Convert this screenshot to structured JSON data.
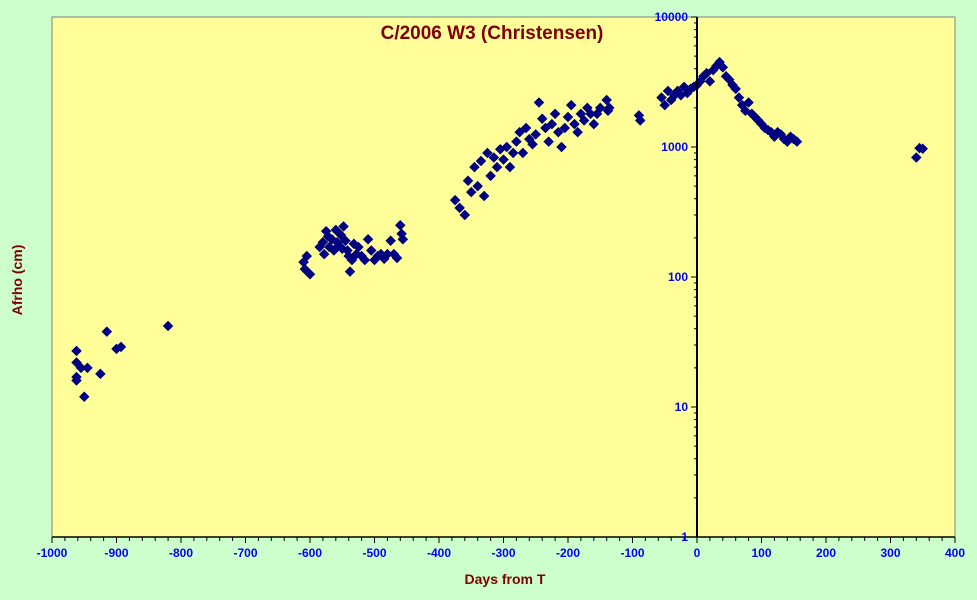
{
  "colors": {
    "page_background": "#ccffcc",
    "plot_background": "#ffff99",
    "marker": "#000080",
    "title": "#800000",
    "x_tick_labels": "#0000ff",
    "y_tick_labels": "#0000ff",
    "axis_titles": "#800000"
  },
  "chart_data": {
    "type": "scatter",
    "title": "C/2006 W3 (Christensen)",
    "xlabel": "Days from T",
    "ylabel": "Afrho (cm)",
    "xlim": [
      -1000,
      400
    ],
    "ylim": [
      1,
      10000
    ],
    "yscale": "log",
    "x_ticks": [
      -1000,
      -900,
      -800,
      -700,
      -600,
      -500,
      -400,
      -300,
      -200,
      -100,
      0,
      100,
      200,
      300,
      400
    ],
    "x_tick_labels": [
      "-1000",
      "-900",
      "-800",
      "-700",
      "-600",
      "-500",
      "-400",
      "-300",
      "-200",
      "-100",
      "0",
      "100",
      "200",
      "300",
      "400"
    ],
    "y_ticks": [
      1,
      10,
      100,
      1000,
      10000
    ],
    "y_tick_labels": [
      "1",
      "10",
      "100",
      "1000",
      "10000"
    ],
    "grid": false,
    "legend": "none",
    "marker": "diamond",
    "series": [
      {
        "points": [
          [
            -962,
            27
          ],
          [
            -962,
            22
          ],
          [
            -962,
            17
          ],
          [
            -962,
            16
          ],
          [
            -955,
            20
          ],
          [
            -950,
            12
          ],
          [
            -945,
            20
          ],
          [
            -925,
            18
          ],
          [
            -915,
            38
          ],
          [
            -900,
            28
          ],
          [
            -893,
            29
          ],
          [
            -820,
            42
          ],
          [
            -610,
            130
          ],
          [
            -608,
            115
          ],
          [
            -605,
            145
          ],
          [
            -600,
            105
          ],
          [
            -585,
            170
          ],
          [
            -580,
            185
          ],
          [
            -578,
            150
          ],
          [
            -575,
            225
          ],
          [
            -572,
            205
          ],
          [
            -570,
            170
          ],
          [
            -566,
            195
          ],
          [
            -563,
            160
          ],
          [
            -560,
            230
          ],
          [
            -558,
            185
          ],
          [
            -555,
            175
          ],
          [
            -552,
            210
          ],
          [
            -550,
            165
          ],
          [
            -548,
            245
          ],
          [
            -545,
            190
          ],
          [
            -542,
            160
          ],
          [
            -540,
            145
          ],
          [
            -538,
            110
          ],
          [
            -535,
            135
          ],
          [
            -532,
            180
          ],
          [
            -528,
            150
          ],
          [
            -525,
            170
          ],
          [
            -520,
            145
          ],
          [
            -515,
            135
          ],
          [
            -510,
            195
          ],
          [
            -505,
            160
          ],
          [
            -500,
            135
          ],
          [
            -495,
            145
          ],
          [
            -490,
            150
          ],
          [
            -485,
            138
          ],
          [
            -480,
            150
          ],
          [
            -475,
            190
          ],
          [
            -470,
            150
          ],
          [
            -465,
            140
          ],
          [
            -460,
            250
          ],
          [
            -458,
            215
          ],
          [
            -456,
            195
          ],
          [
            -375,
            390
          ],
          [
            -368,
            340
          ],
          [
            -360,
            300
          ],
          [
            -355,
            550
          ],
          [
            -350,
            450
          ],
          [
            -345,
            700
          ],
          [
            -340,
            500
          ],
          [
            -335,
            780
          ],
          [
            -330,
            420
          ],
          [
            -325,
            900
          ],
          [
            -320,
            600
          ],
          [
            -315,
            830
          ],
          [
            -310,
            700
          ],
          [
            -305,
            960
          ],
          [
            -300,
            800
          ],
          [
            -295,
            1000
          ],
          [
            -290,
            700
          ],
          [
            -285,
            900
          ],
          [
            -280,
            1100
          ],
          [
            -275,
            1300
          ],
          [
            -270,
            900
          ],
          [
            -265,
            1400
          ],
          [
            -260,
            1150
          ],
          [
            -255,
            1050
          ],
          [
            -250,
            1250
          ],
          [
            -245,
            2200
          ],
          [
            -240,
            1650
          ],
          [
            -235,
            1400
          ],
          [
            -230,
            1100
          ],
          [
            -225,
            1500
          ],
          [
            -220,
            1800
          ],
          [
            -215,
            1300
          ],
          [
            -210,
            1000
          ],
          [
            -205,
            1400
          ],
          [
            -200,
            1700
          ],
          [
            -195,
            2100
          ],
          [
            -190,
            1500
          ],
          [
            -185,
            1300
          ],
          [
            -180,
            1800
          ],
          [
            -175,
            1600
          ],
          [
            -170,
            2000
          ],
          [
            -165,
            1800
          ],
          [
            -160,
            1500
          ],
          [
            -155,
            1800
          ],
          [
            -150,
            2000
          ],
          [
            -140,
            2300
          ],
          [
            -138,
            1900
          ],
          [
            -136,
            2000
          ],
          [
            -90,
            1750
          ],
          [
            -88,
            1600
          ],
          [
            -55,
            2400
          ],
          [
            -50,
            2100
          ],
          [
            -45,
            2700
          ],
          [
            -40,
            2300
          ],
          [
            -35,
            2500
          ],
          [
            -30,
            2700
          ],
          [
            -25,
            2500
          ],
          [
            -20,
            2900
          ],
          [
            -15,
            2600
          ],
          [
            -10,
            2800
          ],
          [
            -5,
            2900
          ],
          [
            0,
            3000
          ],
          [
            5,
            3200
          ],
          [
            10,
            3500
          ],
          [
            15,
            3700
          ],
          [
            20,
            3200
          ],
          [
            25,
            3900
          ],
          [
            30,
            4200
          ],
          [
            35,
            4500
          ],
          [
            40,
            4100
          ],
          [
            45,
            3500
          ],
          [
            50,
            3300
          ],
          [
            55,
            3000
          ],
          [
            60,
            2800
          ],
          [
            65,
            2400
          ],
          [
            70,
            2100
          ],
          [
            75,
            1900
          ],
          [
            80,
            2200
          ],
          [
            85,
            1800
          ],
          [
            90,
            1700
          ],
          [
            95,
            1600
          ],
          [
            100,
            1500
          ],
          [
            105,
            1400
          ],
          [
            110,
            1350
          ],
          [
            115,
            1300
          ],
          [
            120,
            1200
          ],
          [
            125,
            1300
          ],
          [
            130,
            1250
          ],
          [
            135,
            1150
          ],
          [
            140,
            1100
          ],
          [
            145,
            1200
          ],
          [
            150,
            1150
          ],
          [
            155,
            1100
          ],
          [
            340,
            830
          ],
          [
            345,
            980
          ],
          [
            350,
            970
          ]
        ]
      }
    ]
  }
}
